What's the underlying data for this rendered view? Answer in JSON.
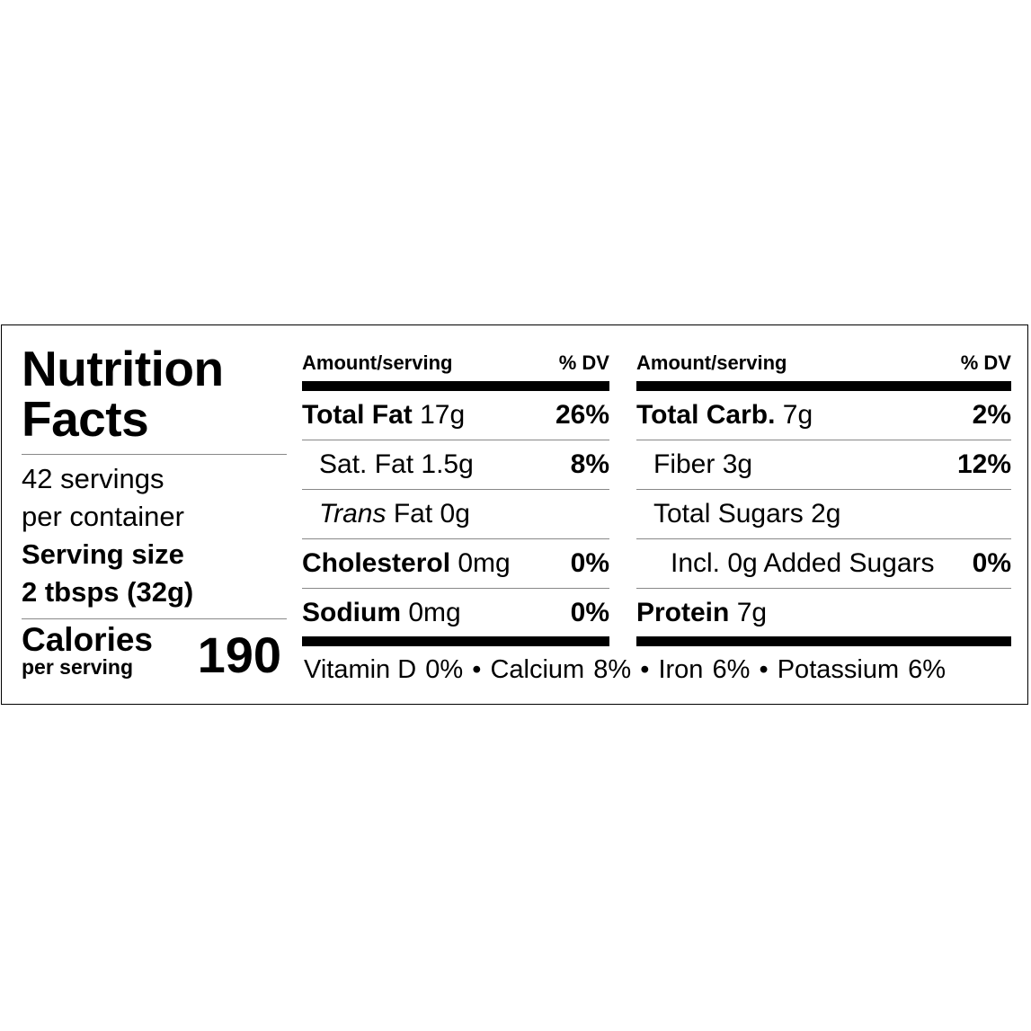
{
  "title_line1": "Nutrition",
  "title_line2": "Facts",
  "servings_line1": "42 servings",
  "servings_line2": "per container",
  "serving_size_label": "Serving size",
  "serving_size_value": "2 tbsps (32g)",
  "calories_label": "Calories",
  "calories_sub": "per serving",
  "calories_value": "190",
  "header": {
    "amount": "Amount/serving",
    "dv": "% DV"
  },
  "left_rows": [
    {
      "name": "Total Fat",
      "amount": "17g",
      "dv": "26%"
    },
    {
      "name": "Sat. Fat",
      "amount": "1.5g",
      "dv": "8%"
    },
    {
      "name": "Trans",
      "name_rest": "Fat",
      "amount": "0g",
      "dv": ""
    },
    {
      "name": "Cholesterol",
      "amount": "0mg",
      "dv": "0%"
    },
    {
      "name": "Sodium",
      "amount": "0mg",
      "dv": "0%"
    }
  ],
  "right_rows": [
    {
      "name": "Total Carb.",
      "amount": "7g",
      "dv": "2%"
    },
    {
      "name": "Fiber",
      "amount": "3g",
      "dv": "12%"
    },
    {
      "name": "Total Sugars",
      "amount": "2g",
      "dv": ""
    },
    {
      "name": "Incl. 0g Added Sugars",
      "amount": "",
      "dv": "0%"
    },
    {
      "name": "Protein",
      "amount": "7g",
      "dv": ""
    }
  ],
  "vitamins": [
    {
      "name": "Vitamin D",
      "value": "0%"
    },
    {
      "name": "Calcium",
      "value": "8%"
    },
    {
      "name": "Iron",
      "value": "6%"
    },
    {
      "name": "Potassium",
      "value": "6%"
    }
  ],
  "separator": "•"
}
